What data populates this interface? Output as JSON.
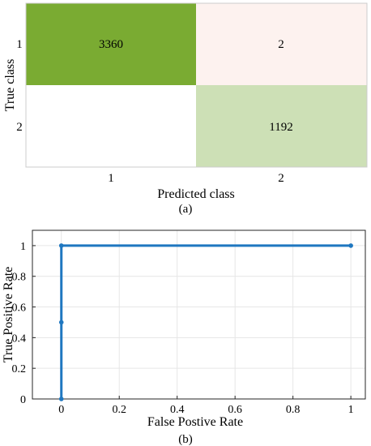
{
  "chart_data": [
    {
      "type": "heatmap",
      "title": "",
      "xlabel": "Predicted class",
      "ylabel": "True class",
      "x_categories": [
        "1",
        "2"
      ],
      "y_categories": [
        "1",
        "2"
      ],
      "values": [
        [
          3360,
          2
        ],
        [
          null,
          1192
        ]
      ],
      "cell_colors": [
        [
          "#7aab32",
          "#fdf2ef"
        ],
        [
          "#ffffff",
          "#cde0b6"
        ]
      ],
      "caption": "(a)"
    },
    {
      "type": "line",
      "title": "",
      "xlabel": "False Postive Rate",
      "ylabel": "True Positive Rate",
      "series": [
        {
          "x": [
            0,
            0,
            0,
            1
          ],
          "y": [
            0,
            0.5,
            1,
            1
          ]
        }
      ],
      "xlim": [
        -0.1,
        1.05
      ],
      "ylim": [
        0,
        1.1
      ],
      "xticks": [
        0,
        0.2,
        0.4,
        0.6,
        0.8,
        1
      ],
      "yticks": [
        0,
        0.2,
        0.4,
        0.6,
        0.8,
        1
      ],
      "xtick_labels": [
        "0",
        "0.2",
        "0.4",
        "0.6",
        "0.8",
        "1"
      ],
      "ytick_labels": [
        "0",
        "0.2",
        "0.4",
        "0.6",
        "0.8",
        "1"
      ],
      "grid": true,
      "line_color": "#1f77c0",
      "caption": "(b)"
    }
  ]
}
